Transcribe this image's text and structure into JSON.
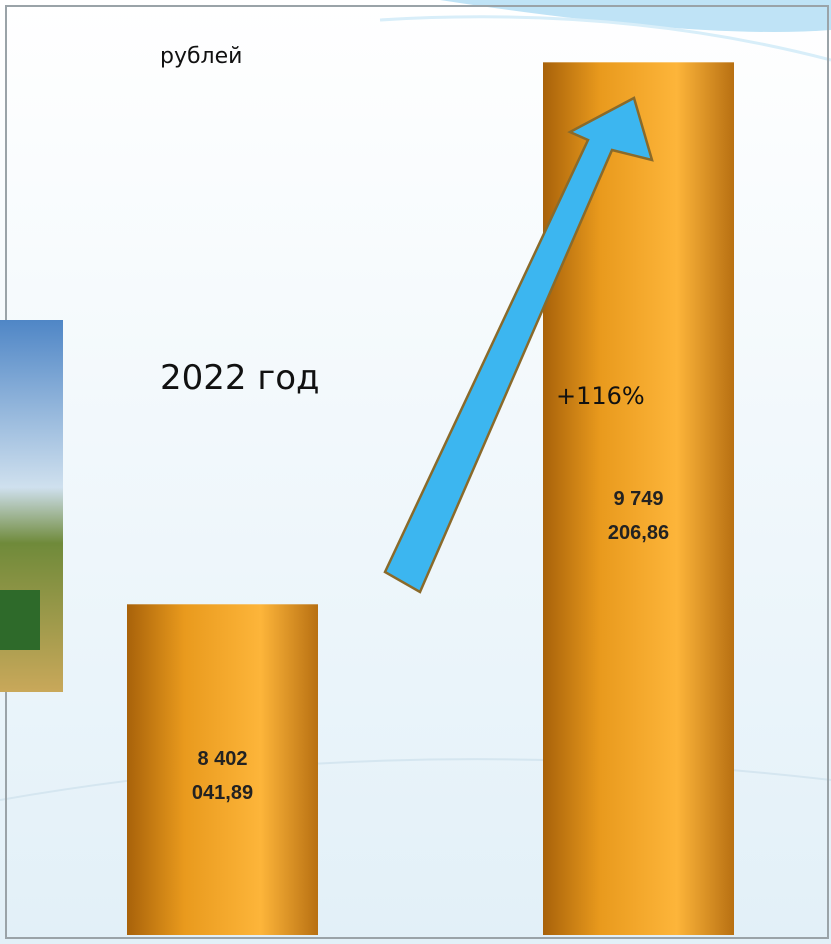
{
  "chart_data": {
    "type": "bar",
    "unit_label": "рублей",
    "subtitle": "2022 год",
    "annotation": "+116%",
    "categories": [
      null,
      null
    ],
    "values": [
      8402041.89,
      9749206.86
    ],
    "value_labels": [
      "8 402 041,89",
      "9 749 206,86"
    ],
    "ylim": [
      7580000,
      9750000
    ],
    "grid": false
  }
}
